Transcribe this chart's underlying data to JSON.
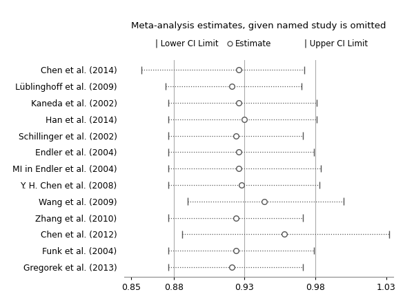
{
  "title": "Meta-analysis estimates, given named study is omitted",
  "legend_lower": "| Lower CI Limit",
  "legend_estimate": "○ Estimate",
  "legend_upper": "| Upper CI Limit",
  "studies": [
    "Chen et al. (2014)",
    "Lüblinghoff et al. (2009)",
    "Kaneda et al. (2002)",
    "Han et al. (2014)",
    "Schillinger et al. (2002)",
    "Endler et al. (2004)",
    "MI in Endler et al. (2004)",
    "Y. H. Chen et al. (2008)",
    "Wang et al. (2009)",
    "Zhang et al. (2010)",
    "Chen et al. (2012)",
    "Funk et al. (2004)",
    "Gregorek et al. (2013)"
  ],
  "estimates": [
    0.926,
    0.921,
    0.926,
    0.93,
    0.924,
    0.926,
    0.926,
    0.928,
    0.944,
    0.924,
    0.958,
    0.924,
    0.921
  ],
  "lower_ci": [
    0.857,
    0.874,
    0.876,
    0.876,
    0.876,
    0.876,
    0.876,
    0.876,
    0.89,
    0.876,
    0.886,
    0.876,
    0.876
  ],
  "upper_ci": [
    0.972,
    0.97,
    0.981,
    0.981,
    0.971,
    0.979,
    0.984,
    0.983,
    1.0,
    0.971,
    1.032,
    0.979,
    0.971
  ],
  "xlim": [
    0.845,
    1.035
  ],
  "xticks": [
    0.85,
    0.88,
    0.93,
    0.98,
    1.03
  ],
  "xtick_labels": [
    "0.85",
    "0.88",
    "0.93",
    "0.98",
    "1.03"
  ],
  "vlines": [
    0.88,
    0.93,
    0.98
  ],
  "line_color": "#555555",
  "vline_color": "#aaaaaa",
  "dot_facecolor": "white",
  "dot_edgecolor": "#555555",
  "background_color": "white",
  "title_fontsize": 9.5,
  "legend_fontsize": 8.5,
  "label_fontsize": 8.8,
  "tick_fontsize": 9
}
